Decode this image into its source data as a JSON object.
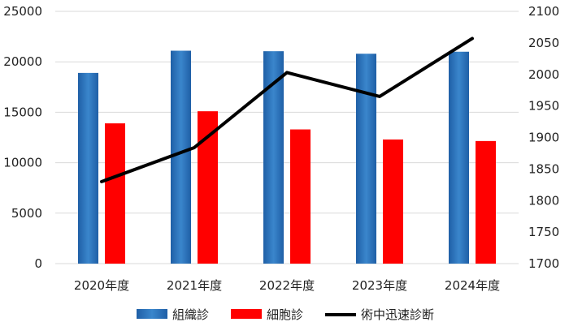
{
  "chart_data": {
    "type": "bar",
    "categories": [
      "2020年度",
      "2021年度",
      "2022年度",
      "2023年度",
      "2024年度"
    ],
    "series": [
      {
        "name": "組織診",
        "kind": "bar",
        "axis": "left",
        "color": "#2e75b6",
        "values": [
          18900,
          21100,
          21050,
          20800,
          21000
        ]
      },
      {
        "name": "細胞診",
        "kind": "bar",
        "axis": "left",
        "color": "#ff0000",
        "values": [
          13900,
          15100,
          13300,
          12300,
          12150
        ]
      },
      {
        "name": "術中迅速診断",
        "kind": "line",
        "axis": "right",
        "color": "#000000",
        "values": [
          1830,
          1884,
          2003,
          1965,
          2057
        ]
      }
    ],
    "y_left": {
      "ylim": [
        0,
        25000
      ],
      "ticks": [
        "0",
        "5000",
        "10000",
        "15000",
        "20000",
        "25000"
      ]
    },
    "y_right": {
      "ylim": [
        1700,
        2100
      ],
      "ticks": [
        "1700",
        "1750",
        "1800",
        "1850",
        "1900",
        "1950",
        "2000",
        "2050",
        "2100"
      ]
    },
    "grid": true,
    "legend_position": "bottom"
  }
}
